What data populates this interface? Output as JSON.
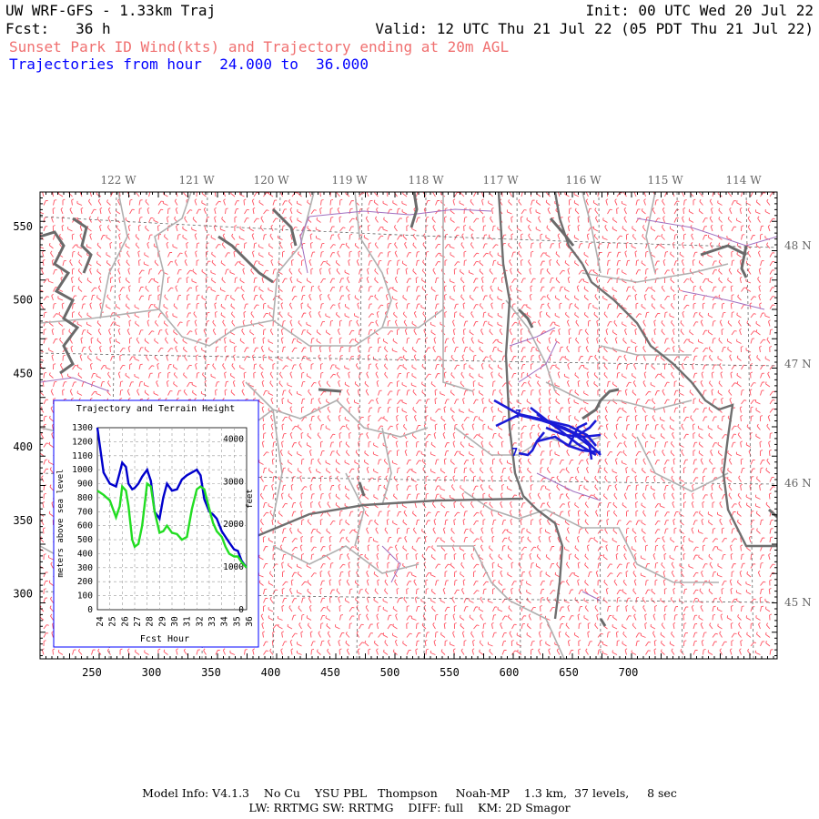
{
  "header": {
    "model": "UW WRF-GFS - 1.33km Traj",
    "init": "Init: 00 UTC Wed 20 Jul 22",
    "fcst_label": "Fcst:",
    "fcst_value": "36 h",
    "valid": "Valid: 12 UTC Thu 21 Jul 22 (05 PDT Thu 21 Jul 22)",
    "product": "Sunset Park ID Wind(kts) and Trajectory ending at 20m AGL",
    "traj_range": "Trajectories from hour  24.000 to  36.000"
  },
  "colors": {
    "product": "#f07070",
    "traj_range": "#0000ff",
    "wind_barbs": "#ff5060",
    "trajectory": "#1a1ad6",
    "terrain_line": "#22dd22",
    "traj_height_line": "#0000cc",
    "state_border": "#777777",
    "county_border": "#b0b0b0",
    "water": "#9a9a9a",
    "inset_border": "#0000ff"
  },
  "map": {
    "x_ticks": [
      "250",
      "300",
      "350",
      "400",
      "450",
      "500",
      "550",
      "600",
      "650",
      "700"
    ],
    "y_ticks": [
      "550",
      "500",
      "450",
      "400",
      "350",
      "300"
    ],
    "lon_labels": [
      "122 W",
      "121 W",
      "120 W",
      "119 W",
      "118 W",
      "117 W",
      "116 W",
      "115 W",
      "114 W"
    ],
    "lat_labels": [
      "48 N",
      "47 N",
      "46 N",
      "45 N"
    ]
  },
  "inset": {
    "title": "Trajectory and Terrain Height",
    "ylabel_left": "meters above sea level",
    "ylabel_right": "feet",
    "xlabel": "Fcst Hour",
    "left_ticks": [
      "1300",
      "1200",
      "1100",
      "1000",
      "900",
      "800",
      "700",
      "600",
      "500",
      "400",
      "300",
      "200",
      "100",
      "0"
    ],
    "right_ticks": [
      "4000",
      "3000",
      "2000",
      "1000",
      "0"
    ],
    "x_ticks": [
      "24",
      "25",
      "26",
      "27",
      "28",
      "29",
      "30",
      "31",
      "32",
      "33",
      "34",
      "35",
      "36"
    ]
  },
  "chart_data": {
    "type": "line",
    "title": "Trajectory and Terrain Height",
    "xlabel": "Fcst Hour",
    "ylabel": "meters above sea level",
    "xlim": [
      24,
      36
    ],
    "ylim": [
      0,
      1300
    ],
    "series": [
      {
        "x": [
          24,
          24.5,
          25,
          25.5,
          25.8,
          26,
          26.3,
          26.5,
          26.8,
          27,
          27.3,
          27.6,
          28,
          28.3,
          28.6,
          29,
          29.3,
          29.6,
          30,
          30.4,
          30.8,
          31.2,
          31.6,
          32,
          32.3,
          32.6,
          33,
          33.3,
          33.6,
          34,
          34.3,
          34.6,
          35,
          35.3,
          35.6,
          36
        ],
        "y": [
          1300,
          980,
          900,
          880,
          980,
          1050,
          1020,
          900,
          860,
          870,
          900,
          950,
          1000,
          920,
          700,
          650,
          800,
          900,
          850,
          860,
          930,
          960,
          980,
          1000,
          960,
          790,
          700,
          680,
          650,
          560,
          520,
          480,
          430,
          420,
          350,
          300
        ],
        "color": "#0000cc"
      },
      {
        "x": [
          24,
          24.5,
          25,
          25.5,
          25.8,
          26,
          26.3,
          26.5,
          26.8,
          27,
          27.3,
          27.6,
          28,
          28.3,
          28.6,
          29,
          29.3,
          29.6,
          30,
          30.4,
          30.8,
          31.2,
          31.6,
          32,
          32.3,
          32.6,
          33,
          33.3,
          33.6,
          34,
          34.3,
          34.6,
          35,
          35.3,
          35.6,
          36
        ],
        "y": [
          850,
          820,
          780,
          660,
          740,
          880,
          850,
          740,
          500,
          450,
          470,
          600,
          900,
          880,
          700,
          550,
          560,
          600,
          550,
          540,
          500,
          520,
          720,
          860,
          880,
          860,
          720,
          620,
          560,
          520,
          450,
          400,
          380,
          380,
          340,
          300
        ],
        "color": "#22dd22"
      }
    ]
  },
  "footer": {
    "line1": "Model Info: V4.1.3    No Cu    YSU PBL   Thompson     Noah-MP    1.3 km,  37 levels,     8 sec",
    "line2": "LW: RRTMG SW: RRTMG    DIFF: full    KM: 2D Smagor"
  }
}
